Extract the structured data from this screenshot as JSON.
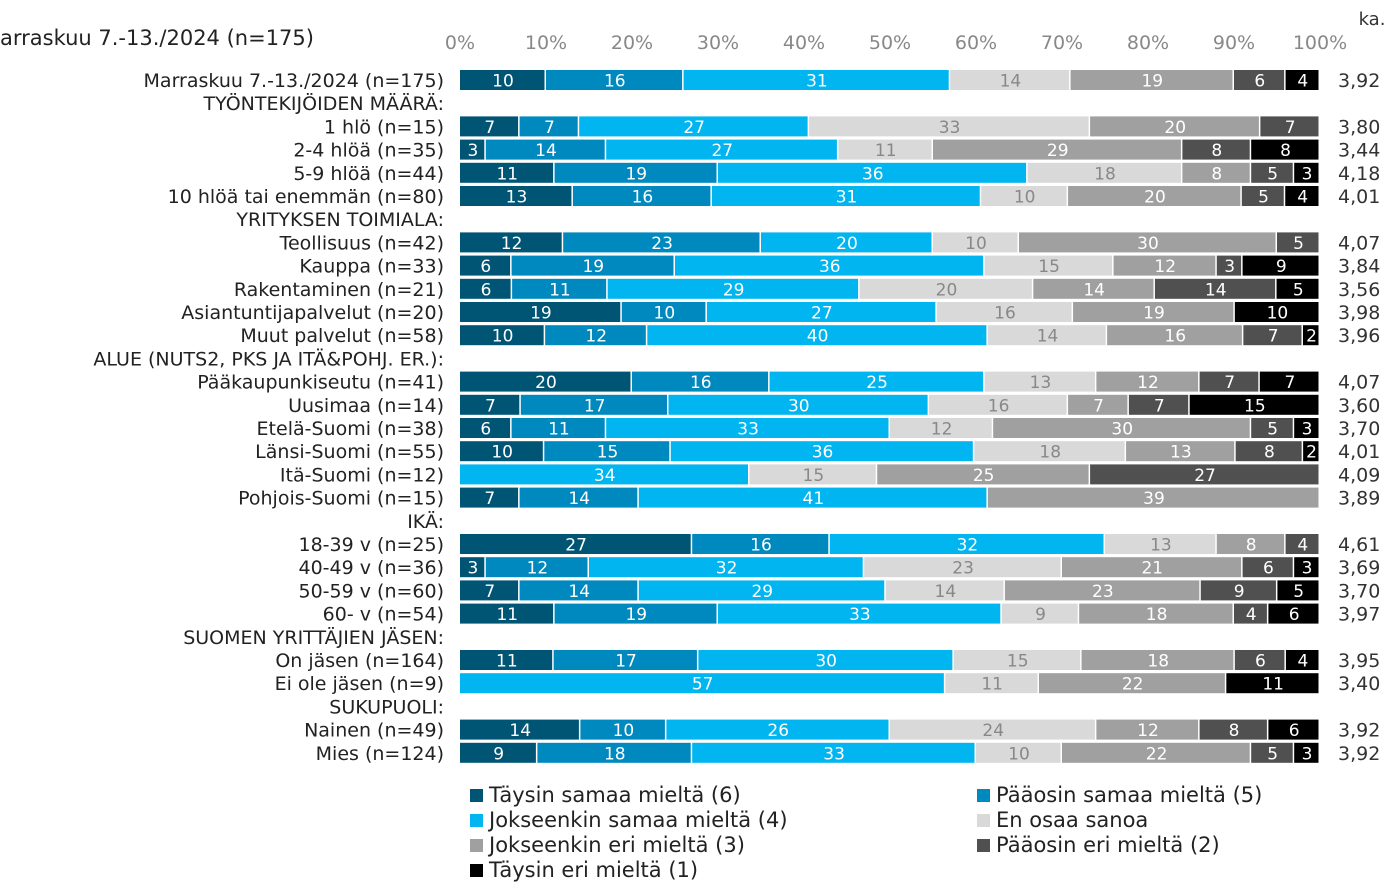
{
  "chart_data": {
    "type": "bar",
    "stacked": "100%",
    "orientation": "horizontal",
    "subtitle": "arraskuu 7.-13./2024 (n=175)",
    "avg_header": "ka.",
    "x_ticks": [
      "0%",
      "10%",
      "20%",
      "30%",
      "40%",
      "50%",
      "60%",
      "70%",
      "80%",
      "90%",
      "100%"
    ],
    "xlim": [
      0,
      100
    ],
    "legend_position": "bottom",
    "series": [
      {
        "name": "Täysin samaa mieltä (6)",
        "color": "#005574"
      },
      {
        "name": "Pääosin samaa mieltä (5)",
        "color": "#0089bf"
      },
      {
        "name": "Jokseenkin samaa mieltä (4)",
        "color": "#00b5f0"
      },
      {
        "name": "En osaa sanoa",
        "color": "#d9d9d9"
      },
      {
        "name": "Jokseenkin eri mieltä (3)",
        "color": "#a0a0a0"
      },
      {
        "name": "Pääosin eri mieltä (2)",
        "color": "#505050"
      },
      {
        "name": "Täysin eri mieltä (1)",
        "color": "#000000"
      }
    ],
    "rows": [
      {
        "label": "Marraskuu 7.-13./2024 (n=175)",
        "values": [
          10,
          16,
          31,
          14,
          19,
          6,
          4
        ],
        "avg": "3,92"
      },
      {
        "label": "TYÖNTEKIJÖIDEN MÄÄRÄ:",
        "header": true
      },
      {
        "label": "1 hlö (n=15)",
        "values": [
          7,
          7,
          27,
          33,
          20,
          7,
          0
        ],
        "avg": "3,80"
      },
      {
        "label": "2-4 hlöä (n=35)",
        "values": [
          3,
          14,
          27,
          11,
          29,
          8,
          8
        ],
        "avg": "3,44"
      },
      {
        "label": "5-9 hlöä (n=44)",
        "values": [
          11,
          19,
          36,
          18,
          8,
          5,
          3
        ],
        "avg": "4,18"
      },
      {
        "label": "10 hlöä tai enemmän (n=80)",
        "values": [
          13,
          16,
          31,
          10,
          20,
          5,
          4
        ],
        "avg": "4,01"
      },
      {
        "label": "YRITYKSEN TOIMIALA:",
        "header": true
      },
      {
        "label": "Teollisuus (n=42)",
        "values": [
          12,
          23,
          20,
          10,
          30,
          5,
          0
        ],
        "avg": "4,07"
      },
      {
        "label": "Kauppa (n=33)",
        "values": [
          6,
          19,
          36,
          15,
          12,
          3,
          9
        ],
        "avg": "3,84"
      },
      {
        "label": "Rakentaminen (n=21)",
        "values": [
          6,
          11,
          29,
          20,
          14,
          14,
          5
        ],
        "avg": "3,56"
      },
      {
        "label": "Asiantuntijapalvelut (n=20)",
        "values": [
          19,
          10,
          27,
          16,
          19,
          0,
          10
        ],
        "avg": "3,98"
      },
      {
        "label": "Muut palvelut (n=58)",
        "values": [
          10,
          12,
          40,
          14,
          16,
          7,
          2
        ],
        "avg": "3,96"
      },
      {
        "label": "ALUE (NUTS2, PKS JA ITÄ&POHJ. ER.):",
        "header": true
      },
      {
        "label": "Pääkaupunkiseutu (n=41)",
        "values": [
          20,
          16,
          25,
          13,
          12,
          7,
          7
        ],
        "avg": "4,07"
      },
      {
        "label": "Uusimaa (n=14)",
        "values": [
          7,
          17,
          30,
          16,
          7,
          7,
          15
        ],
        "avg": "3,60"
      },
      {
        "label": "Etelä-Suomi (n=38)",
        "values": [
          6,
          11,
          33,
          12,
          30,
          5,
          3
        ],
        "avg": "3,70"
      },
      {
        "label": "Länsi-Suomi (n=55)",
        "values": [
          10,
          15,
          36,
          18,
          13,
          8,
          2
        ],
        "avg": "4,01"
      },
      {
        "label": "Itä-Suomi (n=12)",
        "values": [
          0,
          0,
          34,
          15,
          25,
          27,
          0
        ],
        "avg": "4,09",
        "note": "segments shown: 34 (light blue), 15 (light blue), 25 (light grey), 27 (grey)"
      },
      {
        "label": "Pohjois-Suomi (n=15)",
        "values": [
          7,
          14,
          41,
          0,
          39,
          0,
          0
        ],
        "avg": "3,89"
      },
      {
        "label": "IKÄ:",
        "header": true
      },
      {
        "label": "18-39 v (n=25)",
        "values": [
          27,
          16,
          32,
          13,
          8,
          4,
          0
        ],
        "avg": "4,61"
      },
      {
        "label": "40-49 v (n=36)",
        "values": [
          3,
          12,
          32,
          23,
          21,
          6,
          3
        ],
        "avg": "3,69"
      },
      {
        "label": "50-59 v (n=60)",
        "values": [
          7,
          14,
          29,
          14,
          23,
          9,
          5
        ],
        "avg": "3,70"
      },
      {
        "label": "60- v (n=54)",
        "values": [
          11,
          19,
          33,
          9,
          18,
          4,
          6
        ],
        "avg": "3,97"
      },
      {
        "label": "SUOMEN YRITTÄJIEN JÄSEN:",
        "header": true
      },
      {
        "label": "On jäsen (n=164)",
        "values": [
          11,
          17,
          30,
          15,
          18,
          6,
          4
        ],
        "avg": "3,95"
      },
      {
        "label": "Ei ole jäsen (n=9)",
        "values": [
          0,
          0,
          57,
          11,
          22,
          0,
          11
        ],
        "avg": "3,40"
      },
      {
        "label": "SUKUPUOLI:",
        "header": true
      },
      {
        "label": "Nainen (n=49)",
        "values": [
          14,
          10,
          26,
          24,
          12,
          8,
          6
        ],
        "avg": "3,92"
      },
      {
        "label": "Mies (n=124)",
        "values": [
          9,
          18,
          33,
          10,
          22,
          5,
          3
        ],
        "avg": "3,92"
      }
    ]
  }
}
